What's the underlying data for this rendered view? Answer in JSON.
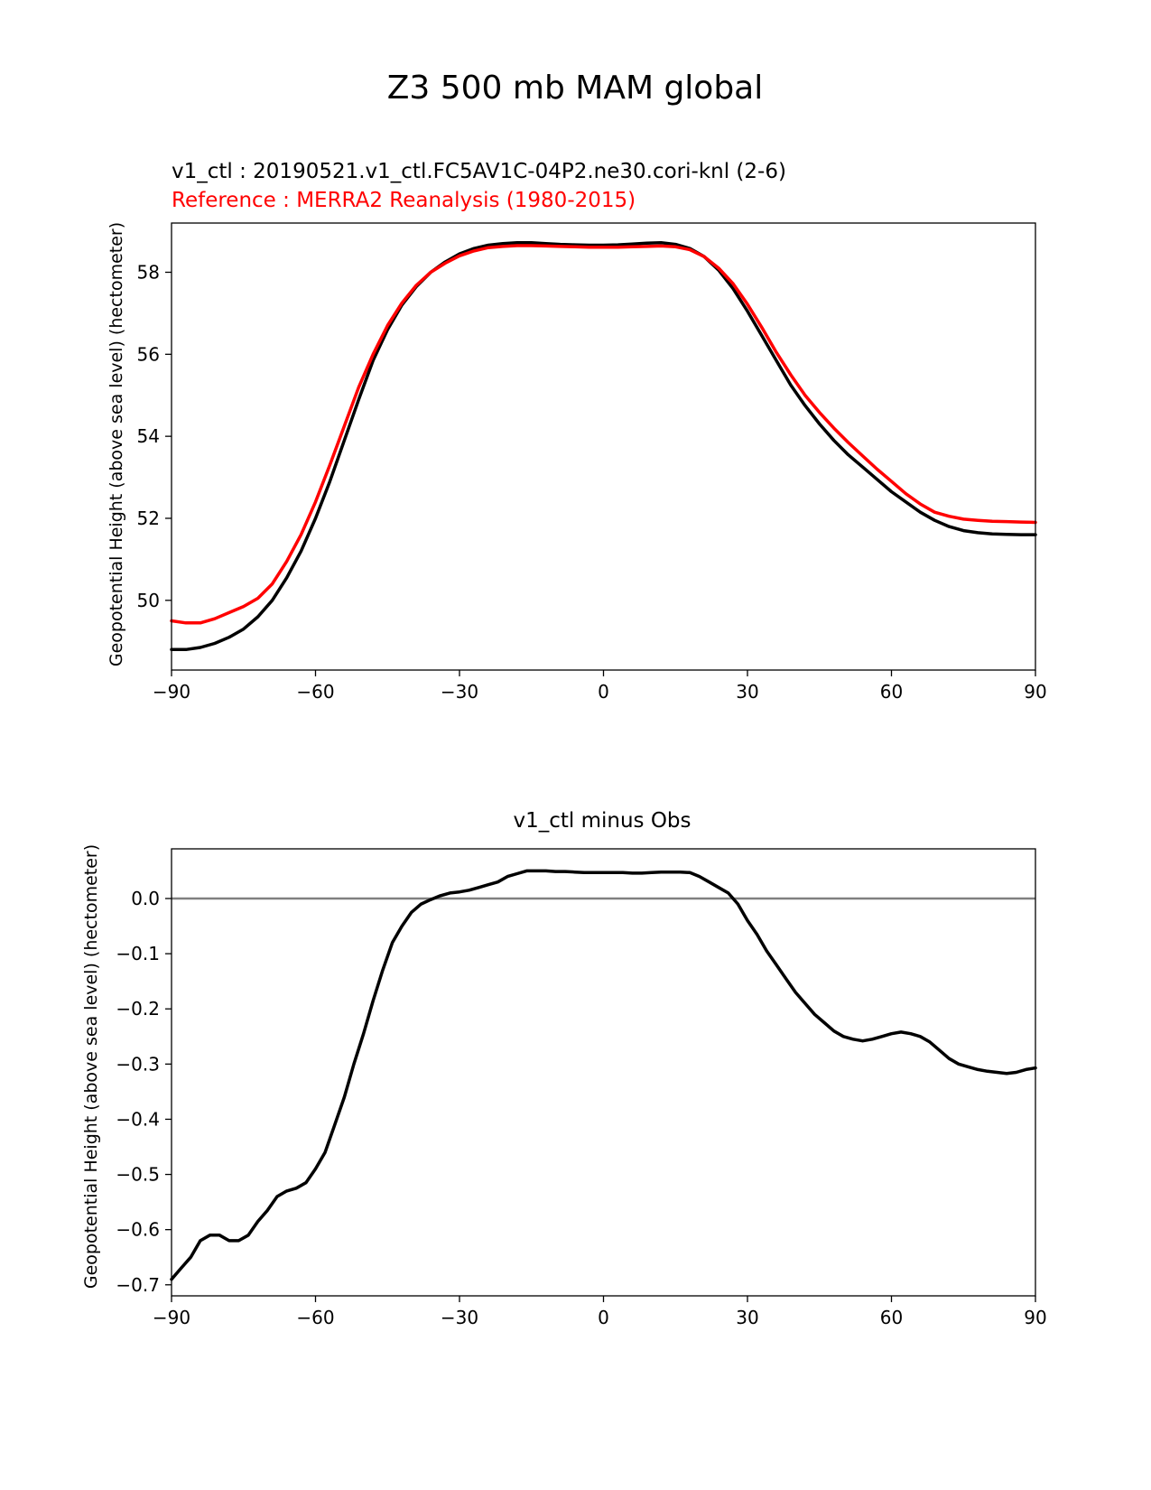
{
  "figure": {
    "suptitle": "Z3 500 mb MAM global"
  },
  "colors": {
    "test": "#000000",
    "reference": "#ff0000",
    "zero_line": "#808080"
  },
  "chart_data": [
    {
      "type": "line",
      "title_test": "v1_ctl : 20190521.v1_ctl.FC5AV1C-04P2.ne30.cori-knl (2-6)",
      "title_ref": "Reference : MERRA2 Reanalysis (1980-2015)",
      "xlabel": "",
      "ylabel": "Geopotential Height (above sea level) (hectometer)",
      "xlim": [
        -90,
        90
      ],
      "ylim": [
        48.3,
        59.2
      ],
      "xticks": [
        -90,
        -60,
        -30,
        0,
        30,
        60,
        90
      ],
      "xtick_labels": [
        "−90",
        "−60",
        "−30",
        "0",
        "30",
        "60",
        "90"
      ],
      "yticks": [
        50,
        52,
        54,
        56,
        58
      ],
      "ytick_labels": [
        "50",
        "52",
        "54",
        "56",
        "58"
      ],
      "series": [
        {
          "name": "v1_ctl",
          "x": [
            -90,
            -87,
            -84,
            -81,
            -78,
            -75,
            -72,
            -69,
            -66,
            -63,
            -60,
            -57,
            -54,
            -51,
            -48,
            -45,
            -42,
            -39,
            -36,
            -33,
            -30,
            -27,
            -24,
            -21,
            -18,
            -15,
            -12,
            -9,
            -6,
            -3,
            0,
            3,
            6,
            9,
            12,
            15,
            18,
            21,
            24,
            27,
            30,
            33,
            36,
            39,
            42,
            45,
            48,
            51,
            54,
            57,
            60,
            63,
            66,
            69,
            72,
            75,
            78,
            81,
            84,
            87,
            90
          ],
          "values": [
            48.8,
            48.8,
            48.85,
            48.95,
            49.1,
            49.3,
            49.6,
            50.0,
            50.55,
            51.2,
            52.0,
            52.9,
            53.9,
            54.9,
            55.85,
            56.6,
            57.2,
            57.65,
            58.0,
            58.25,
            58.45,
            58.58,
            58.66,
            58.7,
            58.72,
            58.72,
            58.7,
            58.68,
            58.67,
            58.66,
            58.66,
            58.67,
            58.69,
            58.71,
            58.72,
            58.68,
            58.58,
            58.38,
            58.05,
            57.6,
            57.05,
            56.45,
            55.85,
            55.25,
            54.75,
            54.3,
            53.9,
            53.55,
            53.25,
            52.95,
            52.65,
            52.4,
            52.15,
            51.95,
            51.8,
            51.7,
            51.65,
            51.62,
            51.61,
            51.6,
            51.6
          ]
        },
        {
          "name": "Reference",
          "x": [
            -90,
            -87,
            -84,
            -81,
            -78,
            -75,
            -72,
            -69,
            -66,
            -63,
            -60,
            -57,
            -54,
            -51,
            -48,
            -45,
            -42,
            -39,
            -36,
            -33,
            -30,
            -27,
            -24,
            -21,
            -18,
            -15,
            -12,
            -9,
            -6,
            -3,
            0,
            3,
            6,
            9,
            12,
            15,
            18,
            21,
            24,
            27,
            30,
            33,
            36,
            39,
            42,
            45,
            48,
            51,
            54,
            57,
            60,
            63,
            66,
            69,
            72,
            75,
            78,
            81,
            84,
            87,
            90
          ],
          "values": [
            49.5,
            49.45,
            49.45,
            49.55,
            49.7,
            49.85,
            50.05,
            50.4,
            50.95,
            51.6,
            52.4,
            53.3,
            54.25,
            55.2,
            56.0,
            56.7,
            57.25,
            57.68,
            58.0,
            58.22,
            58.4,
            58.52,
            58.6,
            58.63,
            58.65,
            58.65,
            58.64,
            58.63,
            58.62,
            58.61,
            58.61,
            58.61,
            58.62,
            58.63,
            58.64,
            58.62,
            58.55,
            58.38,
            58.1,
            57.72,
            57.22,
            56.65,
            56.05,
            55.5,
            55.0,
            54.58,
            54.2,
            53.85,
            53.52,
            53.2,
            52.9,
            52.6,
            52.35,
            52.15,
            52.05,
            51.98,
            51.95,
            51.93,
            51.92,
            51.91,
            51.9
          ]
        }
      ]
    },
    {
      "type": "line",
      "title": "v1_ctl minus Obs",
      "xlabel": "",
      "ylabel": "Geopotential Height (above sea level) (hectometer)",
      "xlim": [
        -90,
        90
      ],
      "ylim": [
        -0.72,
        0.09
      ],
      "xticks": [
        -90,
        -60,
        -30,
        0,
        30,
        60,
        90
      ],
      "xtick_labels": [
        "−90",
        "−60",
        "−30",
        "0",
        "30",
        "60",
        "90"
      ],
      "yticks": [
        0.0,
        -0.1,
        -0.2,
        -0.3,
        -0.4,
        -0.5,
        -0.6,
        -0.7
      ],
      "ytick_labels": [
        "0.0",
        "−0.1",
        "−0.2",
        "−0.3",
        "−0.4",
        "−0.5",
        "−0.6",
        "−0.7"
      ],
      "zero_line": 0,
      "series": [
        {
          "name": "v1_ctl minus Obs",
          "x": [
            -90,
            -88,
            -86,
            -84,
            -82,
            -80,
            -78,
            -76,
            -74,
            -72,
            -70,
            -68,
            -66,
            -64,
            -62,
            -60,
            -58,
            -56,
            -54,
            -52,
            -50,
            -48,
            -46,
            -44,
            -42,
            -40,
            -38,
            -36,
            -34,
            -32,
            -30,
            -28,
            -26,
            -24,
            -22,
            -20,
            -18,
            -16,
            -14,
            -12,
            -10,
            -8,
            -6,
            -4,
            -2,
            0,
            2,
            4,
            6,
            8,
            10,
            12,
            14,
            16,
            18,
            20,
            22,
            24,
            26,
            28,
            30,
            32,
            34,
            36,
            38,
            40,
            42,
            44,
            46,
            48,
            50,
            52,
            54,
            56,
            58,
            60,
            62,
            64,
            66,
            68,
            70,
            72,
            74,
            76,
            78,
            80,
            82,
            84,
            86,
            88,
            90
          ],
          "values": [
            -0.69,
            -0.67,
            -0.65,
            -0.62,
            -0.61,
            -0.61,
            -0.62,
            -0.62,
            -0.61,
            -0.585,
            -0.565,
            -0.54,
            -0.53,
            -0.525,
            -0.515,
            -0.49,
            -0.46,
            -0.41,
            -0.36,
            -0.3,
            -0.245,
            -0.185,
            -0.13,
            -0.08,
            -0.05,
            -0.025,
            -0.01,
            -0.002,
            0.005,
            0.01,
            0.012,
            0.015,
            0.02,
            0.025,
            0.03,
            0.04,
            0.045,
            0.05,
            0.05,
            0.05,
            0.049,
            0.049,
            0.048,
            0.047,
            0.047,
            0.047,
            0.047,
            0.047,
            0.046,
            0.046,
            0.047,
            0.048,
            0.048,
            0.048,
            0.047,
            0.04,
            0.03,
            0.02,
            0.01,
            -0.01,
            -0.04,
            -0.065,
            -0.095,
            -0.12,
            -0.145,
            -0.17,
            -0.19,
            -0.21,
            -0.225,
            -0.24,
            -0.25,
            -0.255,
            -0.258,
            -0.255,
            -0.25,
            -0.245,
            -0.242,
            -0.245,
            -0.25,
            -0.26,
            -0.275,
            -0.29,
            -0.3,
            -0.305,
            -0.31,
            -0.313,
            -0.315,
            -0.317,
            -0.315,
            -0.31,
            -0.307
          ]
        }
      ]
    }
  ]
}
